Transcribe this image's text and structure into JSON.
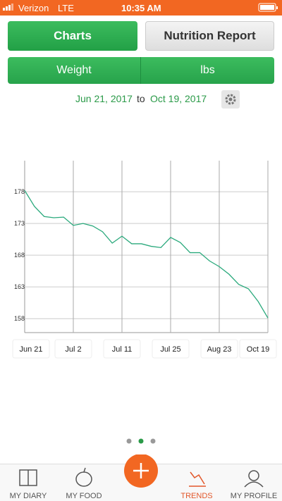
{
  "status_bar": {
    "carrier": "Verizon",
    "network": "LTE",
    "time": "10:35 AM"
  },
  "buttons": {
    "charts": "Charts",
    "nutrition": "Nutrition Report"
  },
  "selector": {
    "metric": "Weight",
    "unit": "lbs"
  },
  "range": {
    "start": "Jun 21, 2017",
    "to": "to",
    "end": "Oct 19, 2017"
  },
  "chart_data": {
    "type": "line",
    "color": "#2aa97c",
    "categories": [
      "Jun 21",
      null,
      null,
      null,
      null,
      "Jul 2",
      null,
      null,
      null,
      null,
      "Jul 11",
      null,
      null,
      null,
      null,
      "Jul 25",
      null,
      null,
      null,
      null,
      "Aug 23",
      null,
      null,
      null,
      null,
      "Oct 19"
    ],
    "values": [
      178.2,
      175.7,
      174.1,
      173.9,
      174,
      172.7,
      173,
      172.6,
      171.7,
      169.9,
      171,
      169.8,
      169.8,
      169.4,
      169.2,
      170.8,
      170,
      168.4,
      168.4,
      167.1,
      166.2,
      165,
      163.4,
      162.7,
      160.7,
      158.1
    ],
    "ylim": [
      155.8,
      182.9
    ],
    "yticks": [
      158,
      163,
      168,
      173,
      178
    ],
    "grid": true
  },
  "tabs": [
    "MY DIARY",
    "MY FOOD",
    "TRENDS",
    "MY PROFILE"
  ]
}
